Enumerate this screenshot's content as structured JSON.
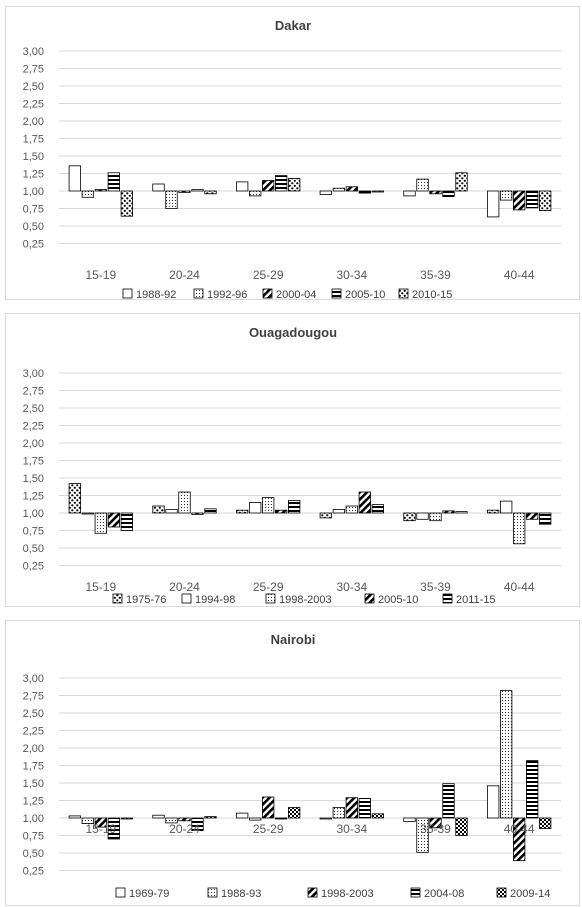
{
  "chart_data": [
    {
      "type": "bar",
      "title": "Dakar",
      "ylim": [
        0,
        3
      ],
      "yticks": [
        "3,00",
        "2,75",
        "2,50",
        "2,25",
        "2,00",
        "1,75",
        "1,50",
        "1,25",
        "1,00",
        "0,75",
        "0,50",
        "0,25"
      ],
      "categories": [
        "15-19",
        "20-24",
        "25-29",
        "30-34",
        "35-39",
        "40-44"
      ],
      "baseline": 1.0,
      "series": [
        {
          "name": "1988-92",
          "pattern": "blank",
          "values": [
            1.36,
            1.1,
            1.13,
            0.95,
            0.93,
            0.63
          ]
        },
        {
          "name": "1992-96",
          "pattern": "dots",
          "values": [
            0.91,
            0.75,
            0.93,
            1.04,
            1.17,
            0.87
          ]
        },
        {
          "name": "2000-04",
          "pattern": "diag",
          "values": [
            1.02,
            0.98,
            1.15,
            1.06,
            0.96,
            0.73
          ]
        },
        {
          "name": "2005-10",
          "pattern": "horiz",
          "values": [
            1.26,
            1.02,
            1.22,
            0.97,
            0.92,
            0.76
          ]
        },
        {
          "name": "2010-15",
          "pattern": "bigdots",
          "values": [
            0.64,
            0.96,
            1.18,
            0.99,
            1.26,
            0.72
          ]
        }
      ]
    },
    {
      "type": "bar",
      "title": "Ouagadougou",
      "ylim": [
        0,
        3
      ],
      "yticks": [
        "3,00",
        "2,75",
        "2,50",
        "2,25",
        "2,00",
        "1,75",
        "1,50",
        "1,25",
        "1,00",
        "0,75",
        "0,50",
        "0,25"
      ],
      "categories": [
        "15-19",
        "20-24",
        "25-29",
        "30-34",
        "35-39",
        "40-44"
      ],
      "baseline": 1.0,
      "series": [
        {
          "name": "1975-76",
          "pattern": "bigdots",
          "values": [
            1.42,
            1.1,
            1.04,
            0.93,
            0.89,
            1.04
          ]
        },
        {
          "name": "1994-98",
          "pattern": "blank",
          "values": [
            0.99,
            1.05,
            1.15,
            1.05,
            0.91,
            1.17
          ]
        },
        {
          "name": "1998-2003",
          "pattern": "dots",
          "values": [
            0.71,
            1.3,
            1.22,
            1.1,
            0.89,
            0.56
          ]
        },
        {
          "name": "2005-10",
          "pattern": "diag",
          "values": [
            0.8,
            0.98,
            1.04,
            1.3,
            1.03,
            0.91
          ]
        },
        {
          "name": "2011-15",
          "pattern": "horiz",
          "values": [
            0.75,
            1.06,
            1.18,
            1.12,
            1.02,
            0.84
          ]
        }
      ]
    },
    {
      "type": "bar",
      "title": "Nairobi",
      "ylim": [
        0,
        3
      ],
      "yticks": [
        "3,00",
        "2,75",
        "2,50",
        "2,25",
        "2,00",
        "1,75",
        "1,50",
        "1,25",
        "1,00",
        "0,75",
        "0,50",
        "0,25"
      ],
      "categories": [
        "15-19",
        "20-24",
        "25-29",
        "30-34",
        "35-39",
        "40-44"
      ],
      "baseline": 1.0,
      "series": [
        {
          "name": "1969-79",
          "pattern": "blank",
          "values": [
            1.03,
            1.04,
            1.07,
            0.99,
            0.95,
            1.46
          ]
        },
        {
          "name": "1988-93",
          "pattern": "dots",
          "values": [
            0.92,
            0.93,
            0.97,
            1.15,
            0.51,
            2.82
          ]
        },
        {
          "name": "1998-2003",
          "pattern": "diag",
          "values": [
            0.87,
            0.96,
            1.3,
            1.29,
            0.86,
            0.39
          ]
        },
        {
          "name": "2004-08",
          "pattern": "horiz",
          "values": [
            0.7,
            0.82,
            0.99,
            1.28,
            1.49,
            1.82
          ]
        },
        {
          "name": "2009-14",
          "pattern": "checker",
          "values": [
            0.99,
            1.02,
            1.15,
            1.06,
            0.75,
            0.85
          ]
        }
      ]
    }
  ]
}
